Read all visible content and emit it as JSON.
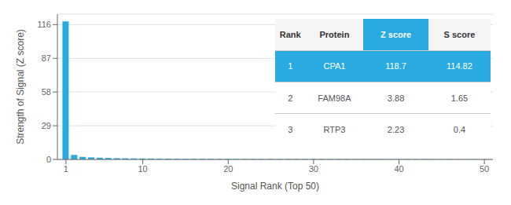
{
  "chart_data": {
    "type": "bar",
    "x": [
      1,
      2,
      3,
      4,
      5,
      6,
      7,
      8,
      9,
      10,
      11,
      12,
      13,
      14,
      15,
      16,
      17,
      18,
      19,
      20,
      21,
      22,
      23,
      24,
      25,
      26,
      27,
      28,
      29,
      30,
      31,
      32,
      33,
      34,
      35,
      36,
      37,
      38,
      39,
      40,
      41,
      42,
      43,
      44,
      45,
      46,
      47,
      48,
      49,
      50
    ],
    "values": [
      118.7,
      3.88,
      2.23,
      1.8,
      1.5,
      1.3,
      1.1,
      1.0,
      0.9,
      0.85,
      0.8,
      0.75,
      0.7,
      0.65,
      0.62,
      0.6,
      0.58,
      0.56,
      0.54,
      0.52,
      0.5,
      0.48,
      0.46,
      0.45,
      0.44,
      0.43,
      0.42,
      0.41,
      0.4,
      0.39,
      0.38,
      0.37,
      0.36,
      0.35,
      0.34,
      0.33,
      0.32,
      0.31,
      0.3,
      0.29,
      0.28,
      0.27,
      0.26,
      0.25,
      0.24,
      0.23,
      0.22,
      0.21,
      0.2,
      0.19
    ],
    "color": "#29abe2",
    "xlabel": "Signal Rank (Top 50)",
    "ylabel": "Strength of Signal (Z score)",
    "xlim": [
      0,
      51
    ],
    "ylim": [
      0,
      125
    ],
    "xticks": [
      1,
      10,
      20,
      30,
      40,
      50
    ],
    "yticks": [
      0,
      29,
      58,
      87,
      116
    ],
    "grid": true,
    "table": [
      [
        "Rank",
        "Protein",
        "Z score",
        "S score"
      ],
      [
        "1",
        "CPA1",
        "118.7",
        "114.82"
      ],
      [
        "2",
        "FAM98A",
        "3.88",
        "1.65"
      ],
      [
        "3",
        "RTP3",
        "2.23",
        "0.4"
      ]
    ]
  }
}
